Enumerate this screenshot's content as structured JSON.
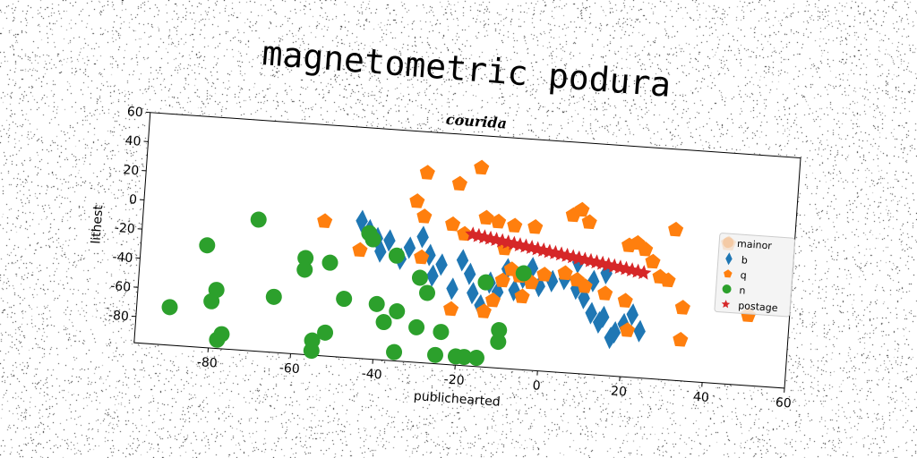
{
  "chart_data": {
    "type": "scatter",
    "title": "magnetometric podura",
    "subtitle": "courida",
    "xlabel": "publichearted",
    "ylabel": "lithest",
    "xlim": [
      -98,
      60
    ],
    "ylim": [
      -98,
      60
    ],
    "xticks": [
      -80,
      -60,
      -40,
      -20,
      0,
      20,
      40,
      60
    ],
    "yticks": [
      -80,
      -60,
      -40,
      -20,
      0,
      20,
      40,
      60
    ],
    "grid": false,
    "legend_position": "right",
    "legend_title": "mainor",
    "colors": {
      "b": "#1f77b4",
      "q": "#ff7f0e",
      "n": "#2ca02c",
      "postage": "#d62728"
    },
    "series": [
      {
        "name": "b",
        "marker": "diamond",
        "color": "#1f77b4",
        "points": [
          [
            -45,
            -4
          ],
          [
            -43,
            -10
          ],
          [
            -41,
            -15
          ],
          [
            -40,
            -24
          ],
          [
            -38,
            -16
          ],
          [
            -35,
            -28
          ],
          [
            -33,
            -20
          ],
          [
            -30,
            -12
          ],
          [
            -28,
            -24
          ],
          [
            -27,
            -38
          ],
          [
            -25,
            -30
          ],
          [
            -22,
            -46
          ],
          [
            -20,
            -26
          ],
          [
            -18,
            -35
          ],
          [
            -17,
            -48
          ],
          [
            -15,
            -56
          ],
          [
            -13,
            -40
          ],
          [
            -11,
            -46
          ],
          [
            -9,
            -30
          ],
          [
            -7,
            -44
          ],
          [
            -5,
            -35
          ],
          [
            -3,
            -28
          ],
          [
            -1,
            -40
          ],
          [
            2,
            -36
          ],
          [
            5,
            -34
          ],
          [
            8,
            -40
          ],
          [
            10,
            -46
          ],
          [
            12,
            -56
          ],
          [
            14,
            -62
          ],
          [
            15,
            -58
          ],
          [
            17,
            -72
          ],
          [
            18,
            -68
          ],
          [
            20,
            -62
          ],
          [
            22,
            -55
          ],
          [
            24,
            -66
          ],
          [
            8,
            -22
          ],
          [
            12,
            -34
          ],
          [
            15,
            -28
          ]
        ]
      },
      {
        "name": "q",
        "marker": "pentagon",
        "color": "#ff7f0e",
        "points": [
          [
            -17,
            38
          ],
          [
            -30,
            32
          ],
          [
            -22,
            26
          ],
          [
            -32,
            12
          ],
          [
            -30,
            2
          ],
          [
            -15,
            4
          ],
          [
            -12,
            2
          ],
          [
            -8,
            0
          ],
          [
            -3,
            0
          ],
          [
            -54,
            -6
          ],
          [
            -45,
            -24
          ],
          [
            -30,
            -26
          ],
          [
            -23,
            -2
          ],
          [
            -20,
            -8
          ],
          [
            -10,
            -16
          ],
          [
            -8,
            -30
          ],
          [
            -6,
            -34
          ],
          [
            -3,
            -38
          ],
          [
            -10,
            -38
          ],
          [
            -12,
            -52
          ],
          [
            -5,
            -48
          ],
          [
            -28,
            -50
          ],
          [
            -22,
            -60
          ],
          [
            -14,
            -60
          ],
          [
            0,
            -32
          ],
          [
            5,
            -30
          ],
          [
            8,
            -34
          ],
          [
            10,
            -38
          ],
          [
            15,
            -42
          ],
          [
            6,
            10
          ],
          [
            8,
            14
          ],
          [
            10,
            6
          ],
          [
            20,
            -8
          ],
          [
            22,
            -6
          ],
          [
            24,
            -10
          ],
          [
            26,
            -18
          ],
          [
            28,
            -28
          ],
          [
            30,
            -30
          ],
          [
            31,
            5
          ],
          [
            20,
            -46
          ],
          [
            21,
            -66
          ],
          [
            34,
            -48
          ],
          [
            34,
            -70
          ],
          [
            44,
            -2
          ],
          [
            50,
            -50
          ]
        ]
      },
      {
        "name": "n",
        "marker": "circle",
        "color": "#2ca02c",
        "points": [
          [
            -90,
            -72
          ],
          [
            -82,
            -28
          ],
          [
            -79,
            -58
          ],
          [
            -80,
            -66
          ],
          [
            -77,
            -88
          ],
          [
            -78,
            -92
          ],
          [
            -70,
            -8
          ],
          [
            -65,
            -60
          ],
          [
            -58,
            -32
          ],
          [
            -58,
            -40
          ],
          [
            -52,
            -34
          ],
          [
            -55,
            -88
          ],
          [
            -55,
            -95
          ],
          [
            -52,
            -82
          ],
          [
            -48,
            -58
          ],
          [
            -43,
            -12
          ],
          [
            -42,
            -16
          ],
          [
            -40,
            -60
          ],
          [
            -38,
            -72
          ],
          [
            -36,
            -26
          ],
          [
            -35,
            -64
          ],
          [
            -30,
            -40
          ],
          [
            -30,
            -74
          ],
          [
            -28,
            -50
          ],
          [
            -24,
            -76
          ],
          [
            -35,
            -92
          ],
          [
            -25,
            -92
          ],
          [
            -20,
            -92
          ],
          [
            -18,
            -92
          ],
          [
            -15,
            -92
          ],
          [
            -10,
            -72
          ],
          [
            -10,
            -80
          ],
          [
            -5,
            -32
          ],
          [
            -14,
            -40
          ]
        ]
      },
      {
        "name": "postage",
        "marker": "star",
        "color": "#d62728",
        "line_from": [
          -18,
          -8
        ],
        "line_to": [
          24,
          -26
        ],
        "count": 30
      }
    ]
  }
}
